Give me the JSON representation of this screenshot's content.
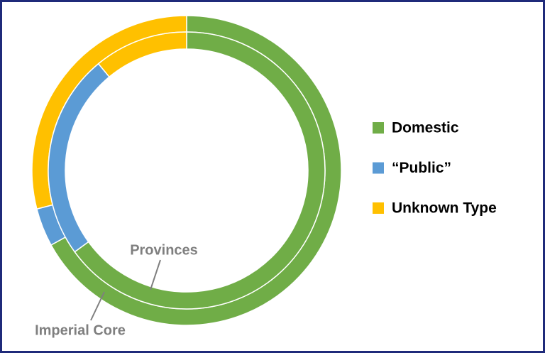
{
  "chart_data": {
    "type": "doughnut",
    "categories": [
      "Domestic",
      "“Public”",
      "Unknown Type"
    ],
    "colors": [
      "#70ad47",
      "#5b9bd5",
      "#ffc000"
    ],
    "series": [
      {
        "name": "Imperial Core",
        "values": [
          67,
          4,
          29
        ]
      },
      {
        "name": "Provinces",
        "values": [
          65,
          24,
          11
        ]
      }
    ],
    "legend": "right"
  }
}
